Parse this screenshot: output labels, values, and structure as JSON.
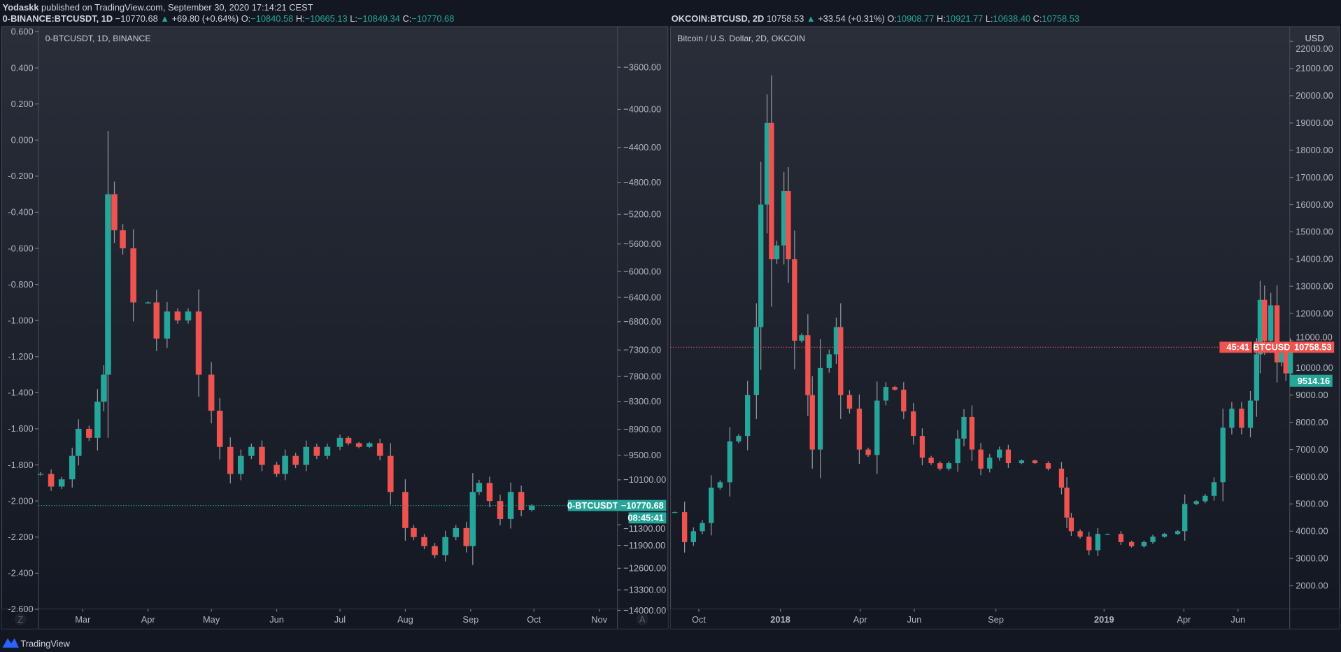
{
  "header": {
    "author": "Yodaskk",
    "published": " published on TradingView.com, September 30, 2020 17:14:21 CEST"
  },
  "colors": {
    "up": "#26a69a",
    "down": "#ef5350",
    "background": "#131722",
    "panel_top": "#2a2e39"
  },
  "left_panel": {
    "symbol": "0-BINANCE:BTCUSDT, 1D",
    "last": " −10770.68",
    "arrow": " ▲",
    "change": " +69.80 (+0.64%)",
    "o_label": " O:",
    "o": "−10840.58",
    "h_label": " H:",
    "h": "−10665.13",
    "l_label": " L:",
    "l": "−10849.34",
    "c_label": " C:",
    "c": "−10770.68",
    "legend": "0-BTCUSDT, 1D, BINANCE",
    "price_tag_symbol": "0-BTCUSDT",
    "price_tag_value": "−10770.68",
    "countdown": "08:45:41",
    "zoom_button": "Z",
    "auto_button": "A"
  },
  "right_panel": {
    "symbol": "OKCOIN:BTCUSD, 2D",
    "last": " 10758.53",
    "arrow": " ▲",
    "change": " +33.54 (+0.31%)",
    "o_label": " O:",
    "o": "10908.77",
    "h_label": " H:",
    "h": "10921.77",
    "l_label": " L:",
    "l": "10638.40",
    "c_label": " C:",
    "c": "10758.53",
    "legend": "Bitcoin / U.S. Dollar, 2D, OKCOIN",
    "currency": "USD",
    "price_tag_symbol": "BTCUSD",
    "price_tag_value": "10758.53",
    "countdown": "45:41",
    "secondary_tag_value": "9514.16"
  },
  "footer": {
    "brand": "TradingView"
  },
  "chart_data": [
    {
      "type": "candlestick",
      "title": "0-BTCUSDT, 1D, BINANCE",
      "left_axis": {
        "ticks": [
          "0.600",
          "0.400",
          "0.200",
          "0.000",
          "-0.200",
          "-0.400",
          "-0.600",
          "-0.800",
          "-1.000",
          "-1.200",
          "-1.400",
          "-1.600",
          "-1.800",
          "-2.000",
          "-2.200",
          "-2.400",
          "-2.600"
        ],
        "range": [
          0.6,
          -2.6
        ]
      },
      "right_axis": {
        "scale": "log",
        "ticks": [
          -3600,
          -4000,
          -4400,
          -4800,
          -5200,
          -5600,
          -6000,
          -6400,
          -6800,
          -7300,
          -7800,
          -8300,
          -8900,
          -9500,
          -10100,
          -11300,
          -11900,
          -12600,
          -13300,
          -14000
        ]
      },
      "x_ticks": [
        [
          "2020-03-01",
          "Mar"
        ],
        [
          "2020-04-01",
          "Apr"
        ],
        [
          "2020-05-01",
          "May"
        ],
        [
          "2020-06-01",
          "Jun"
        ],
        [
          "2020-07-01",
          "Jul"
        ],
        [
          "2020-08-01",
          "Aug"
        ],
        [
          "2020-09-01",
          "Sep"
        ],
        [
          "2020-10-01",
          "Oct"
        ],
        [
          "2020-11-01",
          "Nov"
        ]
      ],
      "x_range": [
        "2020-02-09",
        "2020-11-12"
      ],
      "last_value": -2.025,
      "closes": [
        [
          "2020-02-10",
          -1.85
        ],
        [
          "2020-02-15",
          -1.92
        ],
        [
          "2020-02-20",
          -1.88
        ],
        [
          "2020-02-25",
          -1.75
        ],
        [
          "2020-02-28",
          -1.6
        ],
        [
          "2020-03-04",
          -1.65
        ],
        [
          "2020-03-08",
          -1.45
        ],
        [
          "2020-03-11",
          -1.3
        ],
        [
          "2020-03-13",
          -0.3
        ],
        [
          "2020-03-16",
          -0.5
        ],
        [
          "2020-03-20",
          -0.6
        ],
        [
          "2020-03-25",
          -0.9
        ],
        [
          "2020-04-01",
          -0.9
        ],
        [
          "2020-04-05",
          -1.1
        ],
        [
          "2020-04-10",
          -0.95
        ],
        [
          "2020-04-15",
          -1.0
        ],
        [
          "2020-04-20",
          -0.95
        ],
        [
          "2020-04-25",
          -1.3
        ],
        [
          "2020-05-01",
          -1.5
        ],
        [
          "2020-05-05",
          -1.7
        ],
        [
          "2020-05-10",
          -1.85
        ],
        [
          "2020-05-15",
          -1.75
        ],
        [
          "2020-05-20",
          -1.7
        ],
        [
          "2020-05-25",
          -1.8
        ],
        [
          "2020-06-01",
          -1.85
        ],
        [
          "2020-06-05",
          -1.75
        ],
        [
          "2020-06-10",
          -1.8
        ],
        [
          "2020-06-15",
          -1.7
        ],
        [
          "2020-06-20",
          -1.75
        ],
        [
          "2020-06-25",
          -1.7
        ],
        [
          "2020-07-01",
          -1.65
        ],
        [
          "2020-07-05",
          -1.68
        ],
        [
          "2020-07-10",
          -1.7
        ],
        [
          "2020-07-15",
          -1.68
        ],
        [
          "2020-07-20",
          -1.75
        ],
        [
          "2020-07-25",
          -1.95
        ],
        [
          "2020-08-01",
          -2.15
        ],
        [
          "2020-08-05",
          -2.2
        ],
        [
          "2020-08-10",
          -2.25
        ],
        [
          "2020-08-15",
          -2.3
        ],
        [
          "2020-08-20",
          -2.2
        ],
        [
          "2020-08-25",
          -2.15
        ],
        [
          "2020-08-30",
          -2.25
        ],
        [
          "2020-09-02",
          -1.95
        ],
        [
          "2020-09-05",
          -1.9
        ],
        [
          "2020-09-10",
          -2.0
        ],
        [
          "2020-09-15",
          -2.1
        ],
        [
          "2020-09-20",
          -1.95
        ],
        [
          "2020-09-25",
          -2.05
        ],
        [
          "2020-09-30",
          -2.025
        ]
      ]
    },
    {
      "type": "candlestick",
      "title": "Bitcoin / U.S. Dollar, 2D, OKCOIN",
      "y_axis": {
        "unit": "USD",
        "ticks": [
          22000,
          21000,
          20000,
          19000,
          18000,
          17000,
          16000,
          15000,
          14000,
          13000,
          12000,
          11000,
          10000,
          9000,
          8000,
          7000,
          6000,
          5000,
          4000,
          3000,
          2000
        ]
      },
      "x_ticks": [
        [
          "2017-10-01",
          "Oct"
        ],
        [
          "2018-01-01",
          "2018"
        ],
        [
          "2018-04-01",
          "Apr"
        ],
        [
          "2018-06-01",
          "Jun"
        ],
        [
          "2018-09-01",
          "Sep"
        ],
        [
          "2019-01-01",
          "2019"
        ],
        [
          "2019-04-01",
          "Apr"
        ],
        [
          "2019-06-01",
          "Jun"
        ]
      ],
      "x_range": [
        "2017-09-02",
        "2019-08-10"
      ],
      "last_value": 10758.53,
      "closes": [
        [
          "2017-09-04",
          4700
        ],
        [
          "2017-09-15",
          3600
        ],
        [
          "2017-09-25",
          4000
        ],
        [
          "2017-10-05",
          4300
        ],
        [
          "2017-10-15",
          5600
        ],
        [
          "2017-10-25",
          5800
        ],
        [
          "2017-11-05",
          7300
        ],
        [
          "2017-11-15",
          7500
        ],
        [
          "2017-11-25",
          9000
        ],
        [
          "2017-12-05",
          11500
        ],
        [
          "2017-12-10",
          16000
        ],
        [
          "2017-12-17",
          19000
        ],
        [
          "2017-12-22",
          14000
        ],
        [
          "2017-12-28",
          14500
        ],
        [
          "2018-01-05",
          16500
        ],
        [
          "2018-01-10",
          14000
        ],
        [
          "2018-01-17",
          11000
        ],
        [
          "2018-01-25",
          11200
        ],
        [
          "2018-02-01",
          9000
        ],
        [
          "2018-02-06",
          7000
        ],
        [
          "2018-02-15",
          10000
        ],
        [
          "2018-02-25",
          10500
        ],
        [
          "2018-03-05",
          11500
        ],
        [
          "2018-03-10",
          9000
        ],
        [
          "2018-03-20",
          8500
        ],
        [
          "2018-03-31",
          7000
        ],
        [
          "2018-04-10",
          6800
        ],
        [
          "2018-04-20",
          8800
        ],
        [
          "2018-04-30",
          9300
        ],
        [
          "2018-05-10",
          9200
        ],
        [
          "2018-05-20",
          8400
        ],
        [
          "2018-05-31",
          7500
        ],
        [
          "2018-06-10",
          6700
        ],
        [
          "2018-06-20",
          6500
        ],
        [
          "2018-06-30",
          6300
        ],
        [
          "2018-07-10",
          6500
        ],
        [
          "2018-07-20",
          7400
        ],
        [
          "2018-07-27",
          8200
        ],
        [
          "2018-08-05",
          7000
        ],
        [
          "2018-08-15",
          6300
        ],
        [
          "2018-08-25",
          6700
        ],
        [
          "2018-09-05",
          7000
        ],
        [
          "2018-09-15",
          6500
        ],
        [
          "2018-09-30",
          6600
        ],
        [
          "2018-10-15",
          6500
        ],
        [
          "2018-10-30",
          6300
        ],
        [
          "2018-11-14",
          5600
        ],
        [
          "2018-11-20",
          4500
        ],
        [
          "2018-11-25",
          4000
        ],
        [
          "2018-12-05",
          3800
        ],
        [
          "2018-12-15",
          3300
        ],
        [
          "2018-12-25",
          3900
        ],
        [
          "2019-01-05",
          3900
        ],
        [
          "2019-01-20",
          3600
        ],
        [
          "2019-02-01",
          3450
        ],
        [
          "2019-02-15",
          3600
        ],
        [
          "2019-02-25",
          3800
        ],
        [
          "2019-03-10",
          3900
        ],
        [
          "2019-03-25",
          4000
        ],
        [
          "2019-04-02",
          5000
        ],
        [
          "2019-04-15",
          5100
        ],
        [
          "2019-04-25",
          5300
        ],
        [
          "2019-05-05",
          5800
        ],
        [
          "2019-05-15",
          7800
        ],
        [
          "2019-05-25",
          8500
        ],
        [
          "2019-06-05",
          7800
        ],
        [
          "2019-06-15",
          8800
        ],
        [
          "2019-06-22",
          10500
        ],
        [
          "2019-06-26",
          12500
        ],
        [
          "2019-07-01",
          11000
        ],
        [
          "2019-07-08",
          12300
        ],
        [
          "2019-07-15",
          10200
        ],
        [
          "2019-07-20",
          10600
        ],
        [
          "2019-07-25",
          9800
        ],
        [
          "2019-07-30",
          10758.53
        ]
      ]
    }
  ]
}
